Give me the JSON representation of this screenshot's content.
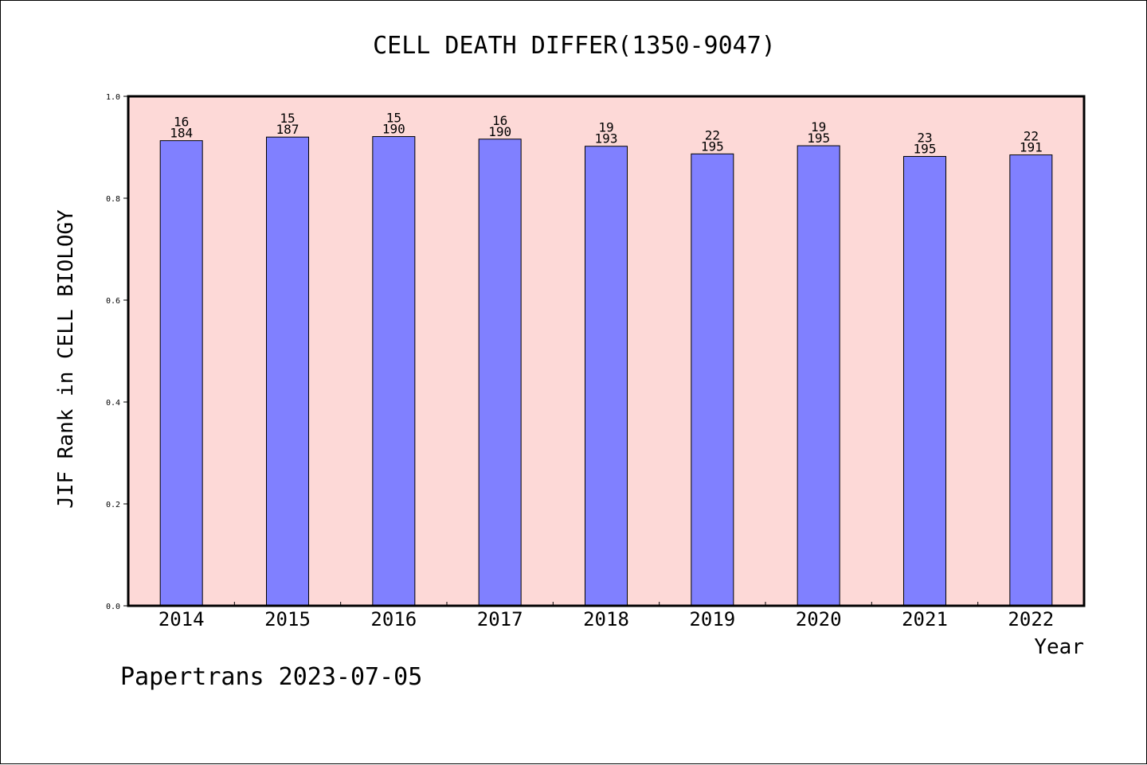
{
  "colors": {
    "plot_background": "#fdd9d7",
    "bar_fill": "#8080ff",
    "bar_stroke": "#000000",
    "frame": "#000000",
    "text": "#000000"
  },
  "footer": {
    "text": "Papertrans 2023-07-05"
  },
  "chart_data": {
    "type": "bar",
    "title": "CELL DEATH DIFFER(1350-9047)",
    "xlabel": "Year",
    "ylabel": "JIF Rank in CELL BIOLOGY",
    "ylim": [
      0,
      1.0
    ],
    "yticks": [
      "0.0",
      "0.2",
      "0.4",
      "0.6",
      "0.8",
      "1.0"
    ],
    "grid": false,
    "legend": "none",
    "categories": [
      "2014",
      "2015",
      "2016",
      "2017",
      "2018",
      "2019",
      "2020",
      "2021",
      "2022"
    ],
    "values": [
      0.913,
      0.92,
      0.921,
      0.916,
      0.902,
      0.887,
      0.903,
      0.882,
      0.885
    ],
    "rank": [
      "16",
      "15",
      "15",
      "16",
      "19",
      "22",
      "19",
      "23",
      "22"
    ],
    "total": [
      "184",
      "187",
      "190",
      "190",
      "193",
      "195",
      "195",
      "195",
      "191"
    ]
  }
}
